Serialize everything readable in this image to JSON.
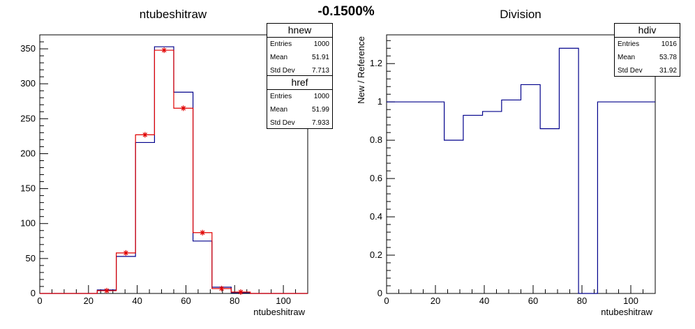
{
  "header": {
    "title": "-0.1500%"
  },
  "left_pad": {
    "title": "ntubeshitraw",
    "stats_new": {
      "name": "hnew",
      "rows": [
        {
          "label": "Entries",
          "value": "1000"
        },
        {
          "label": "Mean",
          "value": "51.91"
        },
        {
          "label": "Std Dev",
          "value": "7.713"
        }
      ]
    },
    "stats_ref": {
      "name": "href",
      "rows": [
        {
          "label": "Entries",
          "value": "1000"
        },
        {
          "label": "Mean",
          "value": "51.99"
        },
        {
          "label": "Std Dev",
          "value": "7.933"
        }
      ]
    }
  },
  "right_pad": {
    "title": "Division",
    "stats_div": {
      "name": "hdiv",
      "rows": [
        {
          "label": "Entries",
          "value": "1016"
        },
        {
          "label": "Mean",
          "value": "53.78"
        },
        {
          "label": "Std Dev",
          "value": "31.92"
        }
      ]
    }
  },
  "colors": {
    "new": "#00008b",
    "ref": "#e00000",
    "div": "#00008b",
    "axis": "#000000"
  },
  "chart_data": [
    {
      "type": "histogram",
      "title": "ntubeshitraw",
      "xlabel": "ntubeshitraw",
      "ylabel": "",
      "xlim": [
        0,
        110
      ],
      "ylim": [
        0,
        370
      ],
      "xticks": [
        0,
        20,
        40,
        60,
        80,
        100
      ],
      "yticks": [
        0,
        50,
        100,
        150,
        200,
        250,
        300,
        350
      ],
      "bin_edges": [
        0,
        7.9,
        15.7,
        23.6,
        31.4,
        39.3,
        47.1,
        55,
        62.9,
        70.7,
        78.6,
        86.4,
        94.3,
        102.1,
        110
      ],
      "series": [
        {
          "name": "hnew",
          "style": "step",
          "values": [
            0,
            0,
            0,
            5,
            53,
            216,
            353,
            288,
            75,
            9,
            1,
            0,
            0,
            0
          ]
        },
        {
          "name": "href",
          "style": "step+markers",
          "values": [
            0,
            0,
            0,
            4,
            58,
            227,
            348,
            265,
            87,
            7,
            2,
            0,
            0,
            0
          ]
        }
      ]
    },
    {
      "type": "histogram",
      "title": "Division",
      "xlabel": "ntubeshitraw",
      "ylabel": "New / Reference",
      "xlim": [
        0,
        110
      ],
      "ylim": [
        0,
        1.35
      ],
      "xticks": [
        0,
        20,
        40,
        60,
        80,
        100
      ],
      "yticks": [
        0,
        0.2,
        0.4,
        0.6,
        0.8,
        1,
        1.2
      ],
      "ytick_labels": [
        "0",
        "0.2",
        "0.4",
        "0.6",
        "0.8",
        "1",
        "1.2"
      ],
      "bin_edges": [
        0,
        7.9,
        15.7,
        23.6,
        31.4,
        39.3,
        47.1,
        55,
        62.9,
        70.7,
        78.6,
        86.4,
        94.3,
        102.1,
        110
      ],
      "series": [
        {
          "name": "hdiv",
          "style": "step",
          "values": [
            1,
            1,
            1,
            0.8,
            0.93,
            0.95,
            1.01,
            1.09,
            0.86,
            1.28,
            0,
            1,
            1,
            1
          ]
        }
      ]
    }
  ]
}
